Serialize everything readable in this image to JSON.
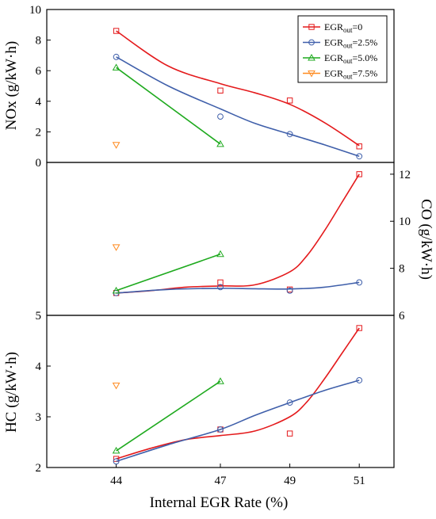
{
  "chart_data": [
    {
      "panel": "top",
      "type": "scatter",
      "ylabel": "NOx (g/kW·h)",
      "ylim": [
        0,
        10
      ],
      "yticks": [
        "0",
        "2",
        "4",
        "6",
        "8",
        "10"
      ],
      "x": [
        44,
        47,
        49,
        51
      ],
      "series": [
        {
          "name": "EGRout=0",
          "color": "#e41a1c",
          "marker": "square",
          "points": [
            8.6,
            4.7,
            4.05,
            1.05
          ],
          "fit": [
            [
              44,
              8.6
            ],
            [
              45.5,
              6.3
            ],
            [
              47,
              5.15
            ],
            [
              48,
              4.55
            ],
            [
              49,
              3.8
            ],
            [
              50,
              2.6
            ],
            [
              51,
              1.1
            ]
          ]
        },
        {
          "name": "EGRout=2.5%",
          "color": "#3f5faa",
          "marker": "circle",
          "points": [
            6.9,
            3.0,
            1.85,
            0.4
          ],
          "fit": [
            [
              44,
              6.9
            ],
            [
              45.5,
              5.0
            ],
            [
              47,
              3.5
            ],
            [
              48,
              2.55
            ],
            [
              49,
              1.85
            ],
            [
              50,
              1.15
            ],
            [
              51,
              0.4
            ]
          ]
        },
        {
          "name": "EGRout=5.0%",
          "color": "#1faa1f",
          "marker": "triangle-up",
          "x": [
            44,
            47
          ],
          "points": [
            6.2,
            1.2
          ],
          "fit": [
            [
              44,
              6.2
            ],
            [
              47,
              1.2
            ]
          ]
        },
        {
          "name": "EGRout=7.5%",
          "color": "#ff8a1f",
          "marker": "triangle-down",
          "x": [
            44
          ],
          "points": [
            1.15
          ],
          "fit": []
        }
      ],
      "legend": {
        "position": "top-right",
        "entries": [
          {
            "base": "EGR",
            "sub": "out",
            "rest": "=0"
          },
          {
            "base": "EGR",
            "sub": "out",
            "rest": "=2.5%"
          },
          {
            "base": "EGR",
            "sub": "out",
            "rest": "=5.0%"
          },
          {
            "base": "EGR",
            "sub": "out",
            "rest": "=7.5%"
          }
        ]
      }
    },
    {
      "panel": "middle",
      "type": "scatter",
      "ylabel": "CO (g/kW·h)",
      "yaxis_side": "right",
      "ylim": [
        6,
        12.5
      ],
      "yticks": [
        "6",
        "8",
        "10",
        "12"
      ],
      "x": [
        44,
        47,
        49,
        51
      ],
      "series": [
        {
          "name": "EGRout=0",
          "color": "#e41a1c",
          "marker": "square",
          "points": [
            6.95,
            7.4,
            7.1,
            12.0
          ],
          "fit": [
            [
              44,
              6.95
            ],
            [
              45,
              7.05
            ],
            [
              46,
              7.2
            ],
            [
              47,
              7.25
            ],
            [
              48,
              7.3
            ],
            [
              49,
              7.85
            ],
            [
              49.5,
              8.55
            ],
            [
              50,
              9.6
            ],
            [
              50.5,
              10.8
            ],
            [
              51,
              12.0
            ]
          ]
        },
        {
          "name": "EGRout=2.5%",
          "color": "#3f5faa",
          "marker": "circle",
          "points": [
            6.95,
            7.2,
            7.05,
            7.4
          ],
          "fit": [
            [
              44,
              6.95
            ],
            [
              45.5,
              7.1
            ],
            [
              47,
              7.15
            ],
            [
              48,
              7.13
            ],
            [
              49,
              7.12
            ],
            [
              50,
              7.2
            ],
            [
              51,
              7.4
            ]
          ]
        },
        {
          "name": "EGRout=5.0%",
          "color": "#1faa1f",
          "marker": "triangle-up",
          "x": [
            44,
            47
          ],
          "points": [
            7.05,
            8.6
          ],
          "fit": [
            [
              44,
              7.05
            ],
            [
              47,
              8.6
            ]
          ]
        },
        {
          "name": "EGRout=7.5%",
          "color": "#ff8a1f",
          "marker": "triangle-down",
          "x": [
            44
          ],
          "points": [
            8.9
          ],
          "fit": []
        }
      ]
    },
    {
      "panel": "bottom",
      "type": "scatter",
      "ylabel": "HC (g/kW·h)",
      "xlabel": "Internal EGR Rate (%)",
      "xticks": [
        "44",
        "47",
        "49",
        "51"
      ],
      "xlim": [
        42,
        52
      ],
      "ylim": [
        2,
        5
      ],
      "yticks": [
        "2",
        "3",
        "4",
        "5"
      ],
      "x": [
        44,
        47,
        49,
        51
      ],
      "series": [
        {
          "name": "EGRout=0",
          "color": "#e41a1c",
          "marker": "square",
          "points": [
            2.17,
            2.75,
            2.67,
            4.75
          ],
          "fit": [
            [
              44,
              2.17
            ],
            [
              45,
              2.38
            ],
            [
              46,
              2.55
            ],
            [
              47,
              2.63
            ],
            [
              48,
              2.72
            ],
            [
              49,
              3.0
            ],
            [
              49.5,
              3.3
            ],
            [
              50,
              3.75
            ],
            [
              50.5,
              4.25
            ],
            [
              51,
              4.75
            ]
          ]
        },
        {
          "name": "EGRout=2.5%",
          "color": "#3f5faa",
          "marker": "circle",
          "points": [
            2.12,
            2.75,
            3.28,
            3.72
          ],
          "fit": [
            [
              44,
              2.12
            ],
            [
              45.5,
              2.45
            ],
            [
              47,
              2.75
            ],
            [
              48,
              3.03
            ],
            [
              49,
              3.28
            ],
            [
              50,
              3.52
            ],
            [
              51,
              3.72
            ]
          ]
        },
        {
          "name": "EGRout=5.0%",
          "color": "#1faa1f",
          "marker": "triangle-up",
          "x": [
            44,
            47
          ],
          "points": [
            2.33,
            3.7
          ],
          "fit": [
            [
              44,
              2.33
            ],
            [
              47,
              3.7
            ]
          ]
        },
        {
          "name": "EGRout=7.5%",
          "color": "#ff8a1f",
          "marker": "triangle-down",
          "x": [
            44
          ],
          "points": [
            3.62
          ],
          "fit": []
        }
      ]
    }
  ]
}
